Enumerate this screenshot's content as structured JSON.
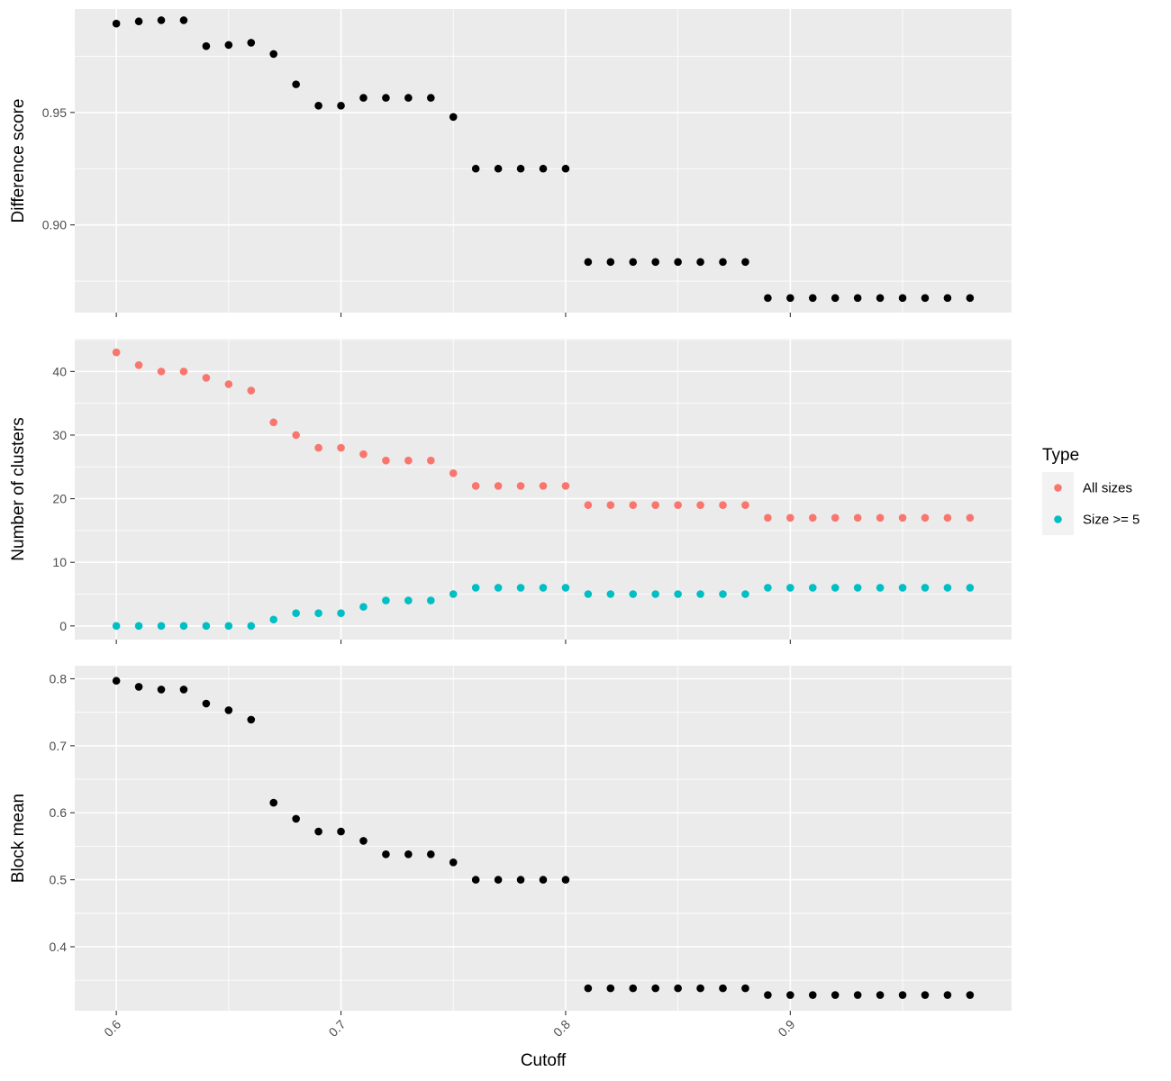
{
  "chart_data": {
    "type": "scatter",
    "xlabel": "Cutoff",
    "x": [
      0.6,
      0.61,
      0.62,
      0.63,
      0.64,
      0.65,
      0.66,
      0.67,
      0.68,
      0.69,
      0.7,
      0.71,
      0.72,
      0.73,
      0.74,
      0.75,
      0.76,
      0.77,
      0.78,
      0.79,
      0.8,
      0.81,
      0.82,
      0.83,
      0.84,
      0.85,
      0.86,
      0.87,
      0.88,
      0.89,
      0.9,
      0.91,
      0.92,
      0.93,
      0.94,
      0.95,
      0.96,
      0.97,
      0.98
    ],
    "xlim": [
      0.5815,
      0.9985
    ],
    "xticks": [
      0.6,
      0.7,
      0.8,
      0.9
    ],
    "xtick_labels": [
      "0.6",
      "0.7",
      "0.8",
      "0.9"
    ],
    "grid": true,
    "legend_placement": "right",
    "facets": [
      {
        "ylabel": "Difference score",
        "ylim": [
          0.861,
          0.996
        ],
        "yticks": [
          0.9,
          0.95
        ],
        "ytick_labels": [
          "0.90",
          "0.95"
        ],
        "series": [
          {
            "color": "#000000",
            "values": [
              0.9895,
              0.9905,
              0.991,
              0.991,
              0.9795,
              0.98,
              0.981,
              0.976,
              0.9625,
              0.953,
              0.953,
              0.9565,
              0.9565,
              0.9565,
              0.9565,
              0.948,
              0.925,
              0.925,
              0.925,
              0.925,
              0.925,
              0.8835,
              0.8835,
              0.8835,
              0.8835,
              0.8835,
              0.8835,
              0.8835,
              0.8835,
              0.8675,
              0.8675,
              0.8675,
              0.8675,
              0.8675,
              0.8675,
              0.8675,
              0.8675,
              0.8675,
              0.8675
            ]
          }
        ]
      },
      {
        "ylabel": "Number of clusters",
        "ylim": [
          -2.15,
          45.15
        ],
        "yticks": [
          0,
          10,
          20,
          30,
          40
        ],
        "ytick_labels": [
          "0",
          "10",
          "20",
          "30",
          "40"
        ],
        "series": [
          {
            "name": "All sizes",
            "color": "#F8766D",
            "values": [
              43,
              41,
              40,
              40,
              39,
              38,
              37,
              32,
              30,
              28,
              28,
              27,
              26,
              26,
              26,
              24,
              22,
              22,
              22,
              22,
              22,
              19,
              19,
              19,
              19,
              19,
              19,
              19,
              19,
              17,
              17,
              17,
              17,
              17,
              17,
              17,
              17,
              17,
              17
            ]
          },
          {
            "name": "Size >= 5",
            "color": "#00BFC4",
            "values": [
              0,
              0,
              0,
              0,
              0,
              0,
              0,
              1,
              2,
              2,
              2,
              3,
              4,
              4,
              4,
              5,
              6,
              6,
              6,
              6,
              6,
              5,
              5,
              5,
              5,
              5,
              5,
              5,
              5,
              6,
              6,
              6,
              6,
              6,
              6,
              6,
              6,
              6,
              6
            ]
          }
        ]
      },
      {
        "ylabel": "Block mean",
        "ylim": [
          0.3045,
          0.8195
        ],
        "yticks": [
          0.4,
          0.5,
          0.6,
          0.7,
          0.8
        ],
        "ytick_labels": [
          "0.4",
          "0.5",
          "0.6",
          "0.7",
          "0.8"
        ],
        "series": [
          {
            "color": "#000000",
            "values": [
              0.797,
              0.788,
              0.784,
              0.784,
              0.763,
              0.753,
              0.739,
              0.615,
              0.591,
              0.572,
              0.572,
              0.558,
              0.538,
              0.538,
              0.538,
              0.526,
              0.5,
              0.5,
              0.5,
              0.5,
              0.5,
              0.338,
              0.338,
              0.338,
              0.338,
              0.338,
              0.338,
              0.338,
              0.338,
              0.328,
              0.328,
              0.328,
              0.328,
              0.328,
              0.328,
              0.328,
              0.328,
              0.328,
              0.328
            ]
          }
        ]
      }
    ],
    "legend": {
      "title": "Type",
      "entries": [
        {
          "label": "All sizes",
          "color": "#F8766D"
        },
        {
          "label": "Size >= 5",
          "color": "#00BFC4"
        }
      ]
    }
  }
}
